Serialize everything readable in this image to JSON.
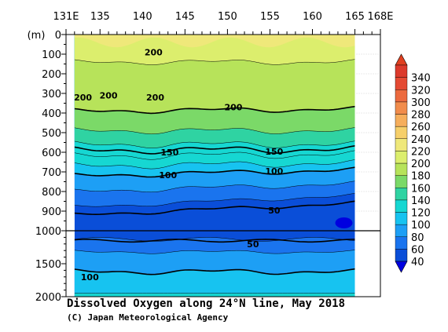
{
  "chart_data": {
    "type": "heatmap",
    "title": "Dissolved Oxygen along 24°N line, May 2018",
    "credit": "(C) Japan Meteorological Agency",
    "x_tick_labels": [
      "131E",
      "135",
      "140",
      "145",
      "150",
      "155",
      "160",
      "165",
      "168E"
    ],
    "x_ticks": [
      131,
      135,
      140,
      145,
      150,
      155,
      160,
      165,
      168
    ],
    "xlim": [
      131,
      168
    ],
    "data_lon_range": [
      132,
      165
    ],
    "y_unit": "(m)",
    "y_upper": {
      "range": [
        0,
        1000
      ],
      "ticks": [
        0,
        100,
        200,
        300,
        400,
        500,
        600,
        700,
        800,
        900,
        1000
      ]
    },
    "y_lower": {
      "range": [
        1000,
        2000
      ],
      "ticks": [
        1500,
        2000
      ]
    },
    "colorbar": {
      "levels": [
        40,
        60,
        80,
        100,
        120,
        140,
        160,
        180,
        200,
        220,
        240,
        260,
        280,
        300,
        320,
        340
      ],
      "colors": [
        "#0a4ed8",
        "#1a74ee",
        "#1d9ff5",
        "#17c3f0",
        "#16d7d2",
        "#2fd3a2",
        "#7bd968",
        "#b7e35a",
        "#dcee6d",
        "#efe87a",
        "#f6cf6a",
        "#f6ae5c",
        "#f18c4c",
        "#ec6a3e",
        "#e44a33",
        "#dc3a2c"
      ],
      "extend_low_color": "#0000e0",
      "extend_high_color": "#e04020"
    },
    "contour_labels": [
      {
        "text": "200",
        "lon": 141.3,
        "depth": 90
      },
      {
        "text": "200",
        "lon": 133.0,
        "depth": 320
      },
      {
        "text": "200",
        "lon": 136.0,
        "depth": 310
      },
      {
        "text": "200",
        "lon": 141.5,
        "depth": 320
      },
      {
        "text": "200",
        "lon": 150.7,
        "depth": 370
      },
      {
        "text": "150",
        "lon": 143.2,
        "depth": 600
      },
      {
        "text": "150",
        "lon": 155.5,
        "depth": 595
      },
      {
        "text": "100",
        "lon": 143.0,
        "depth": 715
      },
      {
        "text": "100",
        "lon": 155.5,
        "depth": 695
      },
      {
        "text": "50",
        "lon": 155.5,
        "depth": 895
      },
      {
        "text": "50",
        "lon": 153.0,
        "depth": 1205
      },
      {
        "text": "100",
        "lon": 133.8,
        "depth": 1700
      }
    ]
  }
}
